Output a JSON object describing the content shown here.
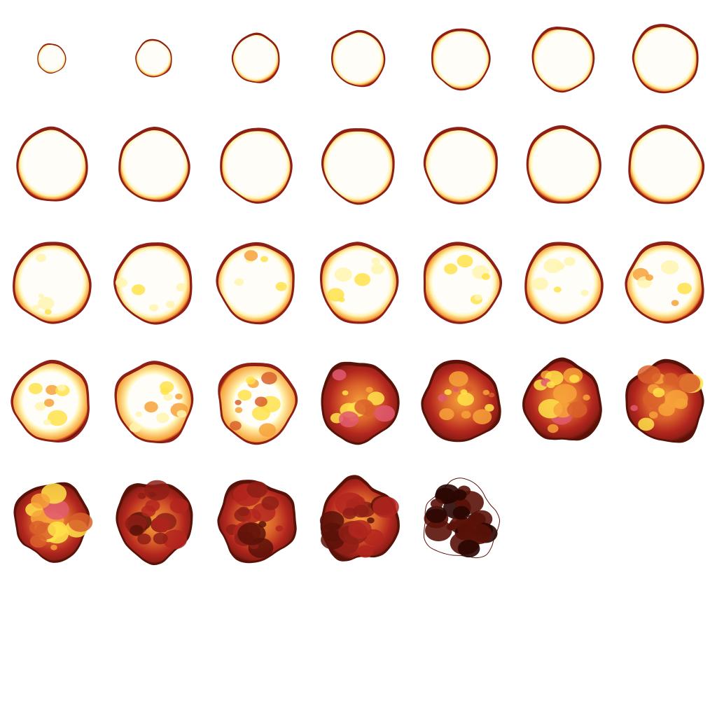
{
  "sheet": {
    "type": "explosion-sprite-sheet",
    "columns": 7,
    "rows": 6,
    "frame_count": 33,
    "background": "#ffffff"
  },
  "palette": {
    "core": "#fffdf8",
    "hot": "#fff4b0",
    "yellow": "#ffe24a",
    "orange": "#f7a23a",
    "ember": "#d9602a",
    "red": "#b3261e",
    "crimson": "#8e1f16",
    "dark": "#5a1208",
    "char": "#2a0602",
    "pink": "#e05a70"
  },
  "frames": [
    {
      "r": 0.33,
      "core": 1.0,
      "breakup": 0.0
    },
    {
      "r": 0.42,
      "core": 1.0,
      "breakup": 0.0
    },
    {
      "r": 0.55,
      "core": 1.0,
      "breakup": 0.0
    },
    {
      "r": 0.62,
      "core": 1.0,
      "breakup": 0.0
    },
    {
      "r": 0.68,
      "core": 1.0,
      "breakup": 0.0
    },
    {
      "r": 0.72,
      "core": 1.0,
      "breakup": 0.0
    },
    {
      "r": 0.76,
      "core": 1.0,
      "breakup": 0.0
    },
    {
      "r": 0.82,
      "core": 1.0,
      "breakup": 0.0
    },
    {
      "r": 0.82,
      "core": 1.0,
      "breakup": 0.0
    },
    {
      "r": 0.83,
      "core": 1.0,
      "breakup": 0.0
    },
    {
      "r": 0.84,
      "core": 1.0,
      "breakup": 0.0
    },
    {
      "r": 0.85,
      "core": 1.0,
      "breakup": 0.0
    },
    {
      "r": 0.86,
      "core": 1.0,
      "breakup": 0.0
    },
    {
      "r": 0.87,
      "core": 1.0,
      "breakup": 0.0
    },
    {
      "r": 0.9,
      "core": 0.95,
      "breakup": 0.05
    },
    {
      "r": 0.9,
      "core": 0.95,
      "breakup": 0.05
    },
    {
      "r": 0.9,
      "core": 0.95,
      "breakup": 0.06
    },
    {
      "r": 0.9,
      "core": 0.94,
      "breakup": 0.07
    },
    {
      "r": 0.9,
      "core": 0.93,
      "breakup": 0.08
    },
    {
      "r": 0.9,
      "core": 0.92,
      "breakup": 0.09
    },
    {
      "r": 0.9,
      "core": 0.9,
      "breakup": 0.1
    },
    {
      "r": 0.9,
      "core": 0.85,
      "breakup": 0.2
    },
    {
      "r": 0.9,
      "core": 0.8,
      "breakup": 0.25
    },
    {
      "r": 0.9,
      "core": 0.72,
      "breakup": 0.3
    },
    {
      "r": 0.9,
      "core": 0.65,
      "breakup": 0.35
    },
    {
      "r": 0.9,
      "core": 0.55,
      "breakup": 0.4
    },
    {
      "r": 0.9,
      "core": 0.45,
      "breakup": 0.45
    },
    {
      "r": 0.9,
      "core": 0.35,
      "breakup": 0.5
    },
    {
      "r": 0.86,
      "core": 0.6,
      "breakup": 0.55
    },
    {
      "r": 0.88,
      "core": 0.55,
      "breakup": 0.6
    },
    {
      "r": 0.9,
      "core": 0.5,
      "breakup": 0.7
    },
    {
      "r": 0.9,
      "core": 0.4,
      "breakup": 0.85
    },
    {
      "r": 0.85,
      "core": 0.3,
      "breakup": 0.95
    }
  ]
}
